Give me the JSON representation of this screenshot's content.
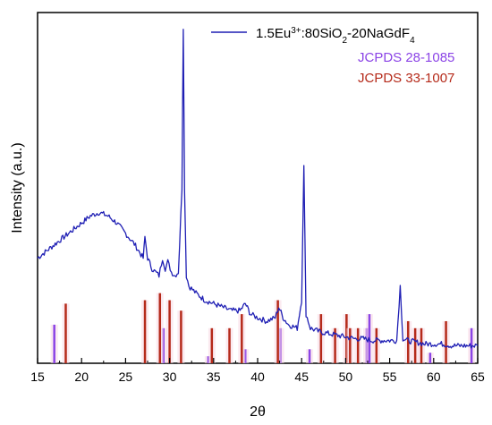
{
  "chart_data": {
    "type": "line",
    "xlabel": "2θ",
    "ylabel": "Intensity (a.u.)",
    "xlim": [
      15,
      65
    ],
    "x_ticks": [
      "15",
      "20",
      "25",
      "30",
      "35",
      "40",
      "45",
      "50",
      "55",
      "60",
      "65"
    ],
    "ylim": [
      0,
      100
    ],
    "y_ticks_shown": false,
    "grid": false,
    "legend_position": "top-right",
    "series": [
      {
        "name_prefix": "1.5Eu",
        "name_sup": "3+",
        "name_mid": ":80SiO",
        "name_sub1": "2",
        "name_mid2": "-20NaGdF",
        "name_sub2": "4",
        "color": "#1f1fb4",
        "x": [
          15,
          17,
          19,
          20,
          21,
          22,
          23,
          24,
          25,
          26,
          27,
          27.2,
          27.5,
          28,
          28.8,
          29.2,
          29.5,
          29.8,
          30.2,
          30.6,
          31,
          31.4,
          31.55,
          31.7,
          31.9,
          32.2,
          33,
          34,
          35,
          36,
          37,
          38,
          38.6,
          39.2,
          40,
          41,
          42,
          42.4,
          42.9,
          43.5,
          44.5,
          45,
          45.25,
          45.5,
          46,
          47,
          48,
          49,
          50,
          51,
          52,
          53,
          54,
          55,
          55.8,
          56.2,
          56.5,
          57,
          58,
          59,
          60,
          61,
          62,
          63,
          64,
          65
        ],
        "y": [
          30,
          34,
          38,
          40,
          42,
          43,
          42,
          40,
          37,
          34,
          30,
          36,
          30,
          27,
          25,
          30,
          27,
          29,
          26,
          25,
          26,
          50,
          96,
          50,
          25,
          22,
          20,
          18,
          17,
          16,
          15,
          15,
          17,
          14,
          13,
          12,
          13,
          16,
          13,
          11,
          10,
          18,
          56,
          14,
          10,
          9,
          8.5,
          8,
          7.5,
          7,
          7,
          6.5,
          6.5,
          6.5,
          6.5,
          22,
          7,
          6.5,
          6,
          5.5,
          5.5,
          5.5,
          5,
          5,
          5,
          5
        ]
      }
    ],
    "reference_patterns": [
      {
        "name": "JCPDS 28-1085",
        "color": "#8b44e6",
        "x": [
          16.9,
          29.3,
          34.4,
          38.6,
          42.6,
          45.9,
          52.4,
          52.7,
          59.6,
          64.3
        ],
        "height": [
          11,
          10,
          2,
          4,
          10,
          4,
          10,
          14,
          3,
          10
        ]
      },
      {
        "name": "JCPDS 33-1007",
        "color": "#b52a1a",
        "x": [
          18.2,
          27.2,
          28.9,
          30.0,
          31.3,
          34.8,
          36.8,
          38.2,
          42.3,
          47.2,
          48.8,
          50.1,
          50.5,
          51.4,
          53.5,
          57.1,
          57.9,
          58.6,
          61.4
        ],
        "height": [
          17,
          18,
          20,
          18,
          15,
          10,
          10,
          14,
          18,
          14,
          10,
          14,
          10,
          10,
          10,
          12,
          10,
          10,
          12
        ]
      }
    ]
  }
}
